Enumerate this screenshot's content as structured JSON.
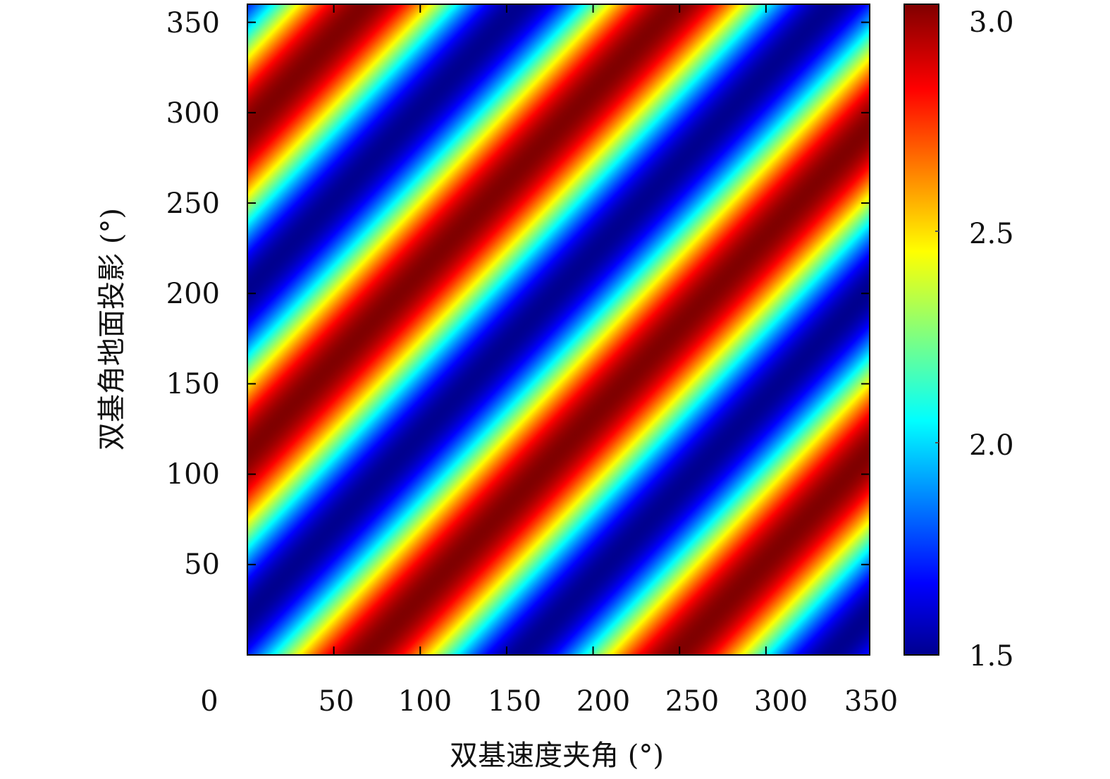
{
  "chart_data": {
    "type": "heatmap",
    "title": "",
    "xlabel": "双基速度夹角 (°)",
    "ylabel": "双基角地面投影 (°)",
    "xlim": [
      0,
      360
    ],
    "ylim": [
      0,
      360
    ],
    "x_tick_labels": [
      "0",
      "50",
      "100",
      "150",
      "200",
      "250",
      "300",
      "350"
    ],
    "y_tick_labels": [
      "50",
      "100",
      "150",
      "200",
      "250",
      "300",
      "350"
    ],
    "colorbar": {
      "colormap": "jet",
      "range": [
        1.5,
        3.0
      ],
      "tick_labels": [
        "1.5",
        "2.0",
        "2.5",
        "3.0"
      ]
    },
    "field": {
      "description_formula": "z = 2.25 + 0.75 * cos(2 * (x - y - 68°))",
      "stripe_period_deg": 180,
      "stripe_slope": 1,
      "peak_points": [
        {
          "x": 68,
          "y": 0
        },
        {
          "x": 248,
          "y": 0
        },
        {
          "x": 0,
          "y": 112
        },
        {
          "x": 0,
          "y": 292
        },
        {
          "x": 248,
          "y": 180
        }
      ],
      "min": 1.5,
      "max": 3.0
    }
  }
}
